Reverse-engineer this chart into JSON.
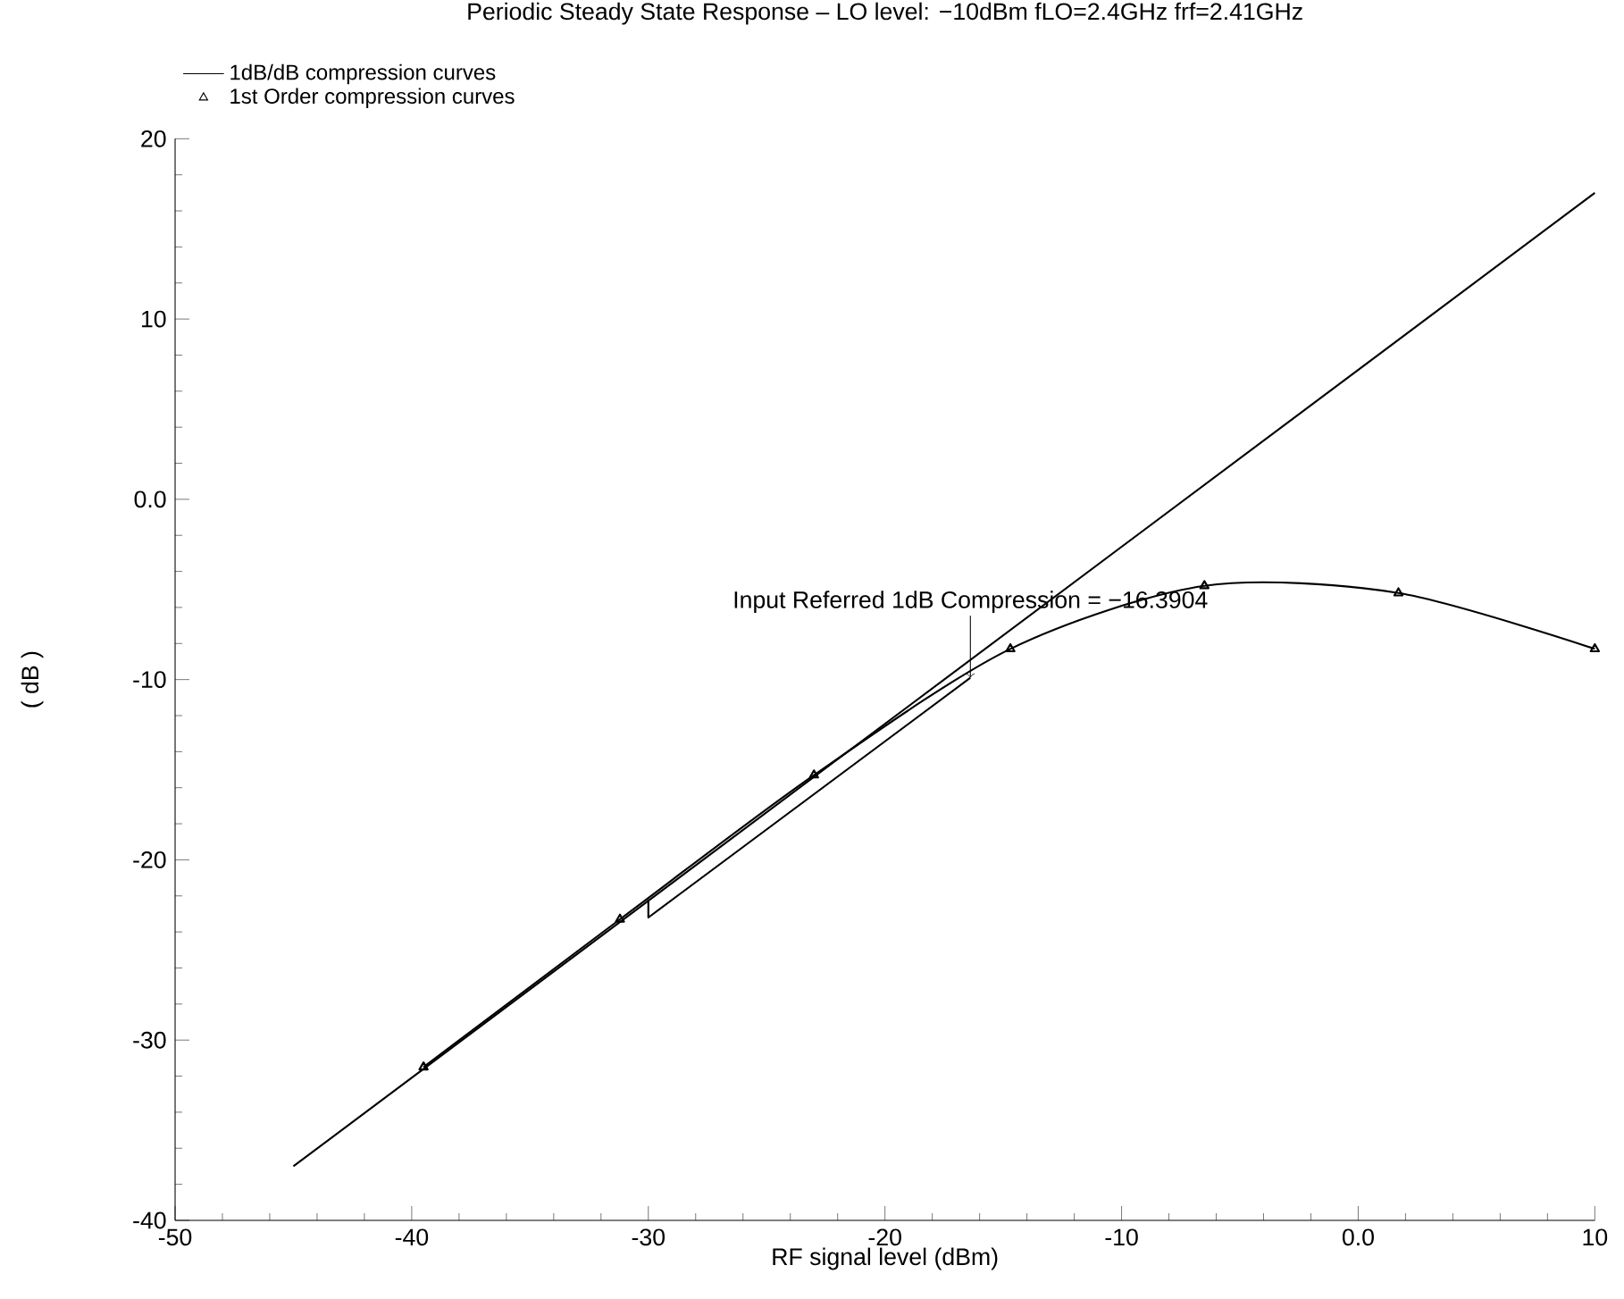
{
  "chart_data": {
    "type": "line",
    "title": "Periodic Steady State Response – LO level: −10dBm  fLO=2.4GHz  frf=2.41GHz",
    "xlabel": "RF signal level (dBm)",
    "ylabel": "( dB )",
    "xlim": [
      -50,
      10
    ],
    "xticks": [
      -50,
      -40,
      -30,
      -20,
      -10,
      {
        "value": 0,
        "label": "0.0"
      },
      10
    ],
    "ylim": [
      -40,
      20
    ],
    "yticks": [
      -40,
      -30,
      -20,
      -10,
      {
        "value": 0,
        "label": "0.0"
      },
      10,
      20
    ],
    "legend": "top left",
    "grid": false,
    "series": [
      {
        "name": "1dB/dB compression curves",
        "color": "#000000",
        "marker": "none",
        "x": [
          -45,
          10
        ],
        "values": [
          -37,
          17
        ]
      },
      {
        "name": "1st Order compression curves",
        "color": "#000000",
        "marker": "triangle",
        "x": [
          -39.5,
          -31.2,
          -23.0,
          -14.7,
          -6.5,
          1.7,
          10
        ],
        "values": [
          -31.5,
          -23.3,
          -15.3,
          -8.3,
          -4.8,
          -5.2,
          -8.3
        ]
      },
      {
        "color": "#000000",
        "marker": "none",
        "x": [
          -30,
          -30,
          -16.3904
        ],
        "values": [
          -22.2,
          -23.2,
          -9.9
        ]
      }
    ],
    "annotations": [
      {
        "text": "Input Referred 1dB Compression = −16.3904",
        "x": -16.3904,
        "y": -9.9
      }
    ]
  }
}
